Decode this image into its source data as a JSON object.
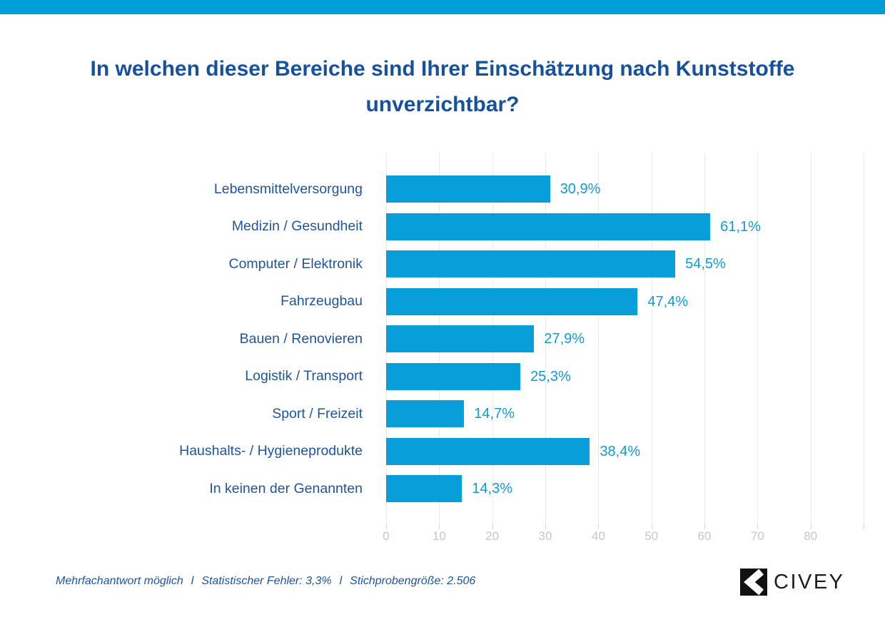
{
  "chart_data": {
    "type": "bar",
    "orientation": "horizontal",
    "title": "In welchen dieser Bereiche sind Ihrer Einschätzung nach Kunststoffe unverzichtbar?",
    "categories": [
      "Lebensmittelversorgung",
      "Medizin / Gesundheit",
      "Computer / Elektronik",
      "Fahrzeugbau",
      "Bauen / Renovieren",
      "Logistik / Transport",
      "Sport / Freizeit",
      "Haushalts- / Hygieneprodukte",
      "In keinen der Genannten"
    ],
    "values": [
      30.9,
      61.1,
      54.5,
      47.4,
      27.9,
      25.3,
      14.7,
      38.4,
      14.3
    ],
    "value_labels": [
      "30,9%",
      "61,1%",
      "54,5%",
      "47,4%",
      "27,9%",
      "25,3%",
      "14,7%",
      "38,4%",
      "14,3%"
    ],
    "x_ticks": [
      0,
      10,
      20,
      30,
      40,
      50,
      60,
      70,
      80
    ],
    "xlim": [
      0,
      90
    ],
    "grid": true,
    "legend": false,
    "bar_color": "#089ed9",
    "value_label_color": "#119bd8",
    "category_label_color": "#1f549e",
    "title_color": "#16519f",
    "axis_tick_color": "#c7c7c7"
  },
  "accent": {
    "top_bar_color": "#009ed9"
  },
  "footer": {
    "notes": [
      "Mehrfachantwort möglich",
      "Statistischer Fehler: 3,3%",
      "Stichprobengröße: 2.506"
    ],
    "separator": "l",
    "text_color": "#1d54a0"
  },
  "brand": {
    "name": "CIVEY"
  }
}
